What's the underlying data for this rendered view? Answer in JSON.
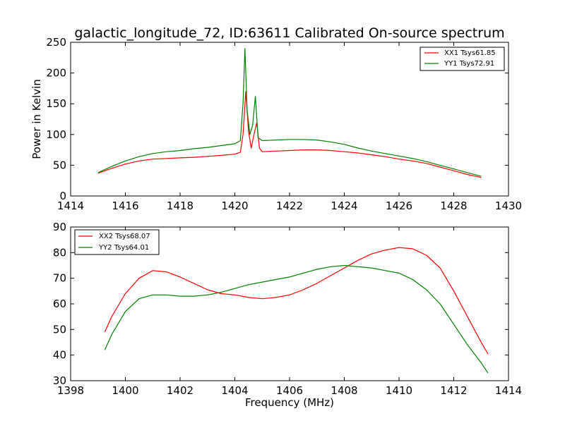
{
  "chart_data": [
    {
      "type": "line",
      "title": "galactic_longitude_72, ID:63611 Calibrated On-source spectrum",
      "xlabel": "",
      "ylabel": "Power in Kelvin",
      "xlim": [
        1414,
        1430
      ],
      "ylim": [
        0,
        250
      ],
      "xticks": [
        1414,
        1416,
        1418,
        1420,
        1422,
        1424,
        1426,
        1428,
        1430
      ],
      "yticks": [
        0,
        50,
        100,
        150,
        200,
        250
      ],
      "legend_position": "top-right",
      "series": [
        {
          "name": "XX1 Tsys61.85",
          "color": "#ff0000",
          "x": [
            1415.0,
            1415.5,
            1416.0,
            1416.5,
            1417.0,
            1417.5,
            1418.0,
            1418.5,
            1419.0,
            1419.5,
            1420.0,
            1420.2,
            1420.3,
            1420.4,
            1420.5,
            1420.6,
            1420.7,
            1420.8,
            1420.9,
            1421.0,
            1421.5,
            1422.0,
            1422.5,
            1423.0,
            1423.5,
            1424.0,
            1424.5,
            1425.0,
            1425.5,
            1426.0,
            1426.5,
            1427.0,
            1427.5,
            1428.0,
            1428.5,
            1429.0
          ],
          "y": [
            37,
            45,
            52,
            57,
            60,
            61,
            62,
            63,
            64.5,
            66,
            68,
            71,
            100,
            170,
            105,
            78,
            100,
            119,
            78,
            72,
            73,
            74,
            75,
            75,
            74,
            72,
            70,
            67,
            64,
            60,
            57,
            53,
            47,
            41,
            35,
            30
          ]
        },
        {
          "name": "YY1 Tsys72.91",
          "color": "#008000",
          "x": [
            1415.0,
            1415.5,
            1416.0,
            1416.5,
            1417.0,
            1417.5,
            1418.0,
            1418.5,
            1419.0,
            1419.5,
            1420.0,
            1420.2,
            1420.3,
            1420.37,
            1420.45,
            1420.55,
            1420.65,
            1420.75,
            1420.85,
            1421.0,
            1421.5,
            1422.0,
            1422.5,
            1423.0,
            1423.5,
            1424.0,
            1424.5,
            1425.0,
            1425.5,
            1426.0,
            1426.5,
            1427.0,
            1427.5,
            1428.0,
            1428.5,
            1429.0
          ],
          "y": [
            38,
            48,
            57,
            64,
            69,
            72,
            74,
            77,
            79,
            82,
            85,
            90,
            150,
            240,
            140,
            100,
            115,
            162,
            95,
            90,
            91,
            92,
            92,
            91,
            88,
            84,
            78,
            73,
            69,
            65,
            61,
            56,
            50,
            44,
            38,
            32
          ]
        }
      ]
    },
    {
      "type": "line",
      "title": "",
      "xlabel": "Frequency (MHz)",
      "ylabel": "",
      "xlim": [
        1398,
        1414
      ],
      "ylim": [
        30,
        90
      ],
      "xticks": [
        1398,
        1400,
        1402,
        1404,
        1406,
        1408,
        1410,
        1412,
        1414
      ],
      "yticks": [
        30,
        40,
        50,
        60,
        70,
        80,
        90
      ],
      "legend_position": "top-left",
      "series": [
        {
          "name": "XX2 Tsys68.07",
          "color": "#ff0000",
          "x": [
            1399.25,
            1399.5,
            1400.0,
            1400.5,
            1401.0,
            1401.5,
            1402.0,
            1402.5,
            1403.0,
            1403.5,
            1404.0,
            1404.5,
            1405.0,
            1405.5,
            1406.0,
            1406.5,
            1407.0,
            1407.5,
            1408.0,
            1408.5,
            1409.0,
            1409.5,
            1410.0,
            1410.5,
            1411.0,
            1411.5,
            1412.0,
            1412.5,
            1413.0,
            1413.25
          ],
          "y": [
            49,
            55,
            64,
            70,
            73,
            72.5,
            70.5,
            68,
            65.5,
            64,
            63.5,
            62.5,
            62,
            62.5,
            63.5,
            65.5,
            68,
            71,
            74,
            77,
            79.5,
            81,
            82,
            81.5,
            79,
            74,
            65,
            55,
            45,
            40.5
          ]
        },
        {
          "name": "YY2 Tsys64.01",
          "color": "#008000",
          "x": [
            1399.25,
            1399.5,
            1400.0,
            1400.5,
            1401.0,
            1401.5,
            1402.0,
            1402.5,
            1403.0,
            1403.5,
            1404.0,
            1404.5,
            1405.0,
            1405.5,
            1406.0,
            1406.5,
            1407.0,
            1407.5,
            1408.0,
            1408.5,
            1409.0,
            1409.5,
            1410.0,
            1410.5,
            1411.0,
            1411.5,
            1412.0,
            1412.5,
            1413.0,
            1413.25
          ],
          "y": [
            42,
            48,
            57,
            62,
            63.5,
            63.5,
            63,
            63,
            63.5,
            64.5,
            66,
            67.5,
            68.5,
            69.5,
            70.5,
            72,
            73.5,
            74.5,
            75,
            74.5,
            74,
            73,
            72,
            69.5,
            65.5,
            60,
            52,
            44,
            37,
            33
          ]
        }
      ]
    }
  ]
}
